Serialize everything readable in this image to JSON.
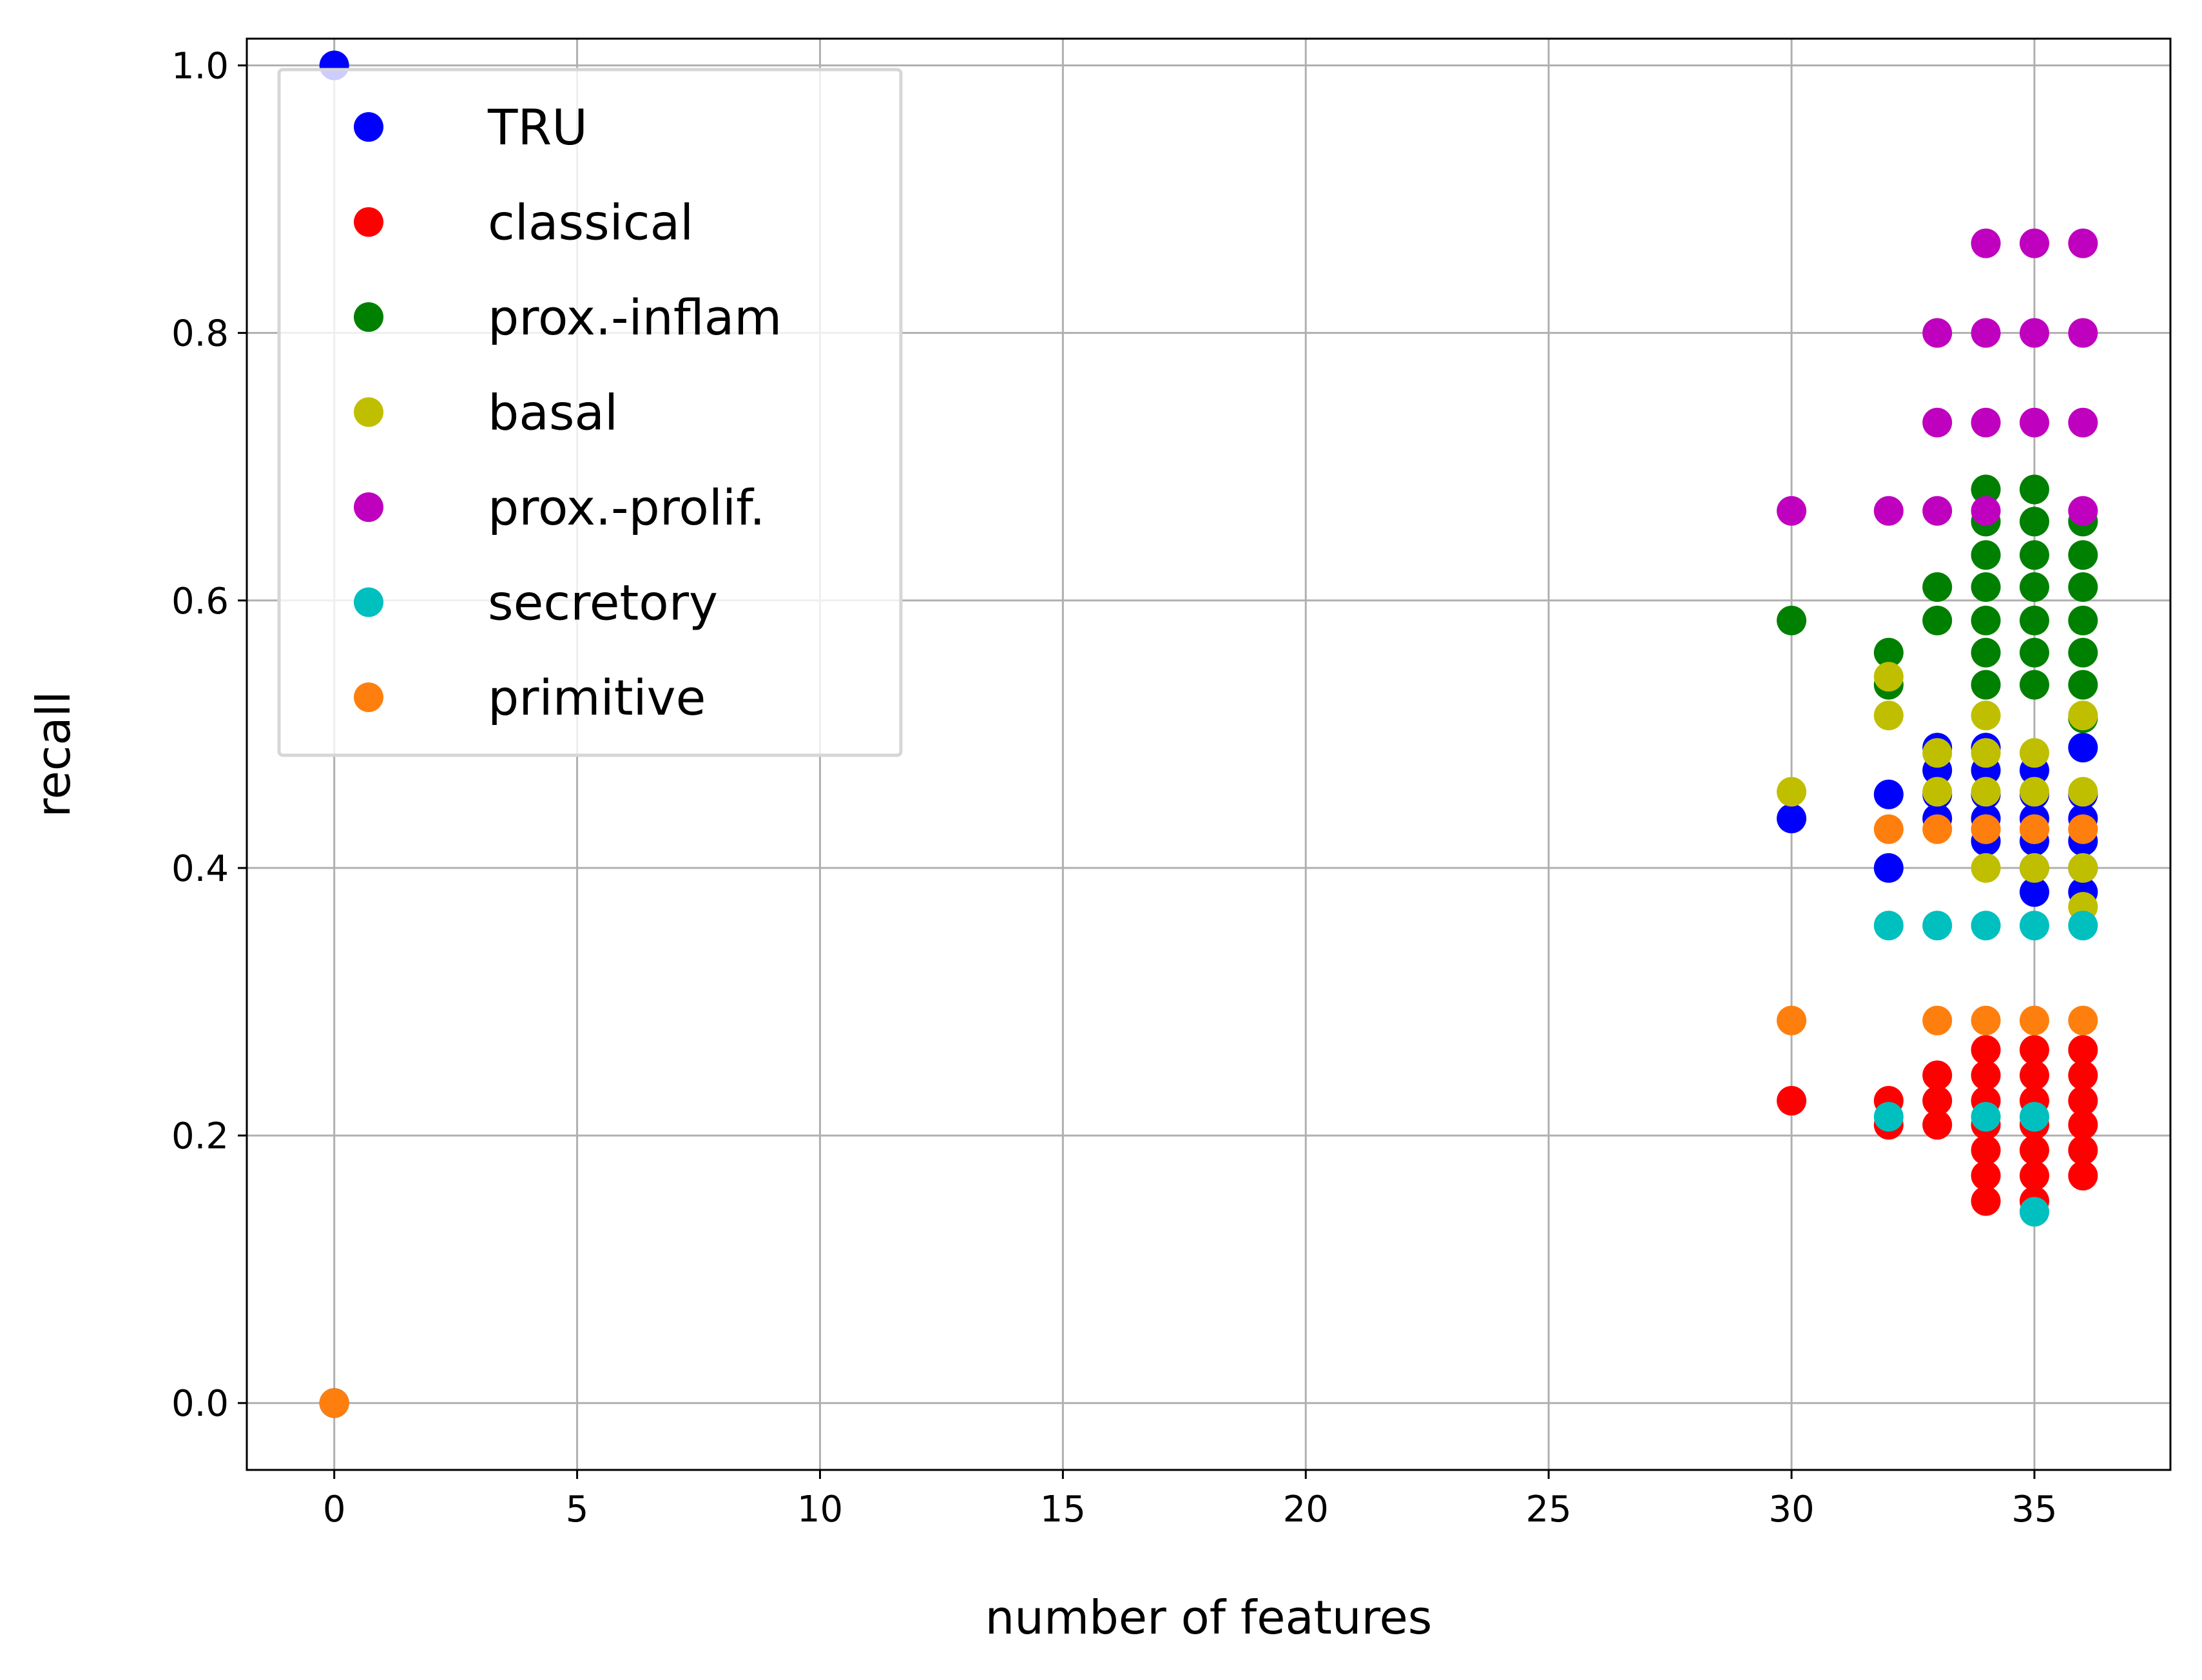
{
  "chart_data": {
    "type": "scatter",
    "title": "",
    "xlabel": "number of features",
    "ylabel": "recall",
    "xlim": [
      -1.8,
      37.8
    ],
    "ylim": [
      -0.05,
      1.02
    ],
    "xticks": [
      "0",
      "5",
      "10",
      "15",
      "20",
      "25",
      "30",
      "35"
    ],
    "yticks": [
      "0.0",
      "0.2",
      "0.4",
      "0.6",
      "0.8",
      "1.0"
    ],
    "grid": true,
    "legend_position": "top-left",
    "series": [
      {
        "name": "TRU",
        "color": "#0000ff",
        "points": [
          [
            0,
            1.0
          ],
          [
            0,
            0.0
          ],
          [
            30,
            0.437
          ],
          [
            32,
            0.455
          ],
          [
            32,
            0.4
          ],
          [
            33,
            0.49
          ],
          [
            33,
            0.473
          ],
          [
            33,
            0.455
          ],
          [
            33,
            0.437
          ],
          [
            34,
            0.49
          ],
          [
            34,
            0.473
          ],
          [
            34,
            0.455
          ],
          [
            34,
            0.437
          ],
          [
            34,
            0.42
          ],
          [
            35,
            0.473
          ],
          [
            35,
            0.455
          ],
          [
            35,
            0.437
          ],
          [
            35,
            0.42
          ],
          [
            35,
            0.4
          ],
          [
            35,
            0.382
          ],
          [
            36,
            0.49
          ],
          [
            36,
            0.455
          ],
          [
            36,
            0.437
          ],
          [
            36,
            0.42
          ],
          [
            36,
            0.4
          ],
          [
            36,
            0.382
          ]
        ]
      },
      {
        "name": "classical",
        "color": "#ff0000",
        "points": [
          [
            0,
            0.0
          ],
          [
            30,
            0.226
          ],
          [
            32,
            0.226
          ],
          [
            32,
            0.208
          ],
          [
            33,
            0.245
          ],
          [
            33,
            0.226
          ],
          [
            33,
            0.208
          ],
          [
            34,
            0.264
          ],
          [
            34,
            0.245
          ],
          [
            34,
            0.226
          ],
          [
            34,
            0.208
          ],
          [
            34,
            0.189
          ],
          [
            34,
            0.17
          ],
          [
            34,
            0.151
          ],
          [
            35,
            0.264
          ],
          [
            35,
            0.245
          ],
          [
            35,
            0.226
          ],
          [
            35,
            0.208
          ],
          [
            35,
            0.189
          ],
          [
            35,
            0.17
          ],
          [
            35,
            0.151
          ],
          [
            36,
            0.264
          ],
          [
            36,
            0.245
          ],
          [
            36,
            0.226
          ],
          [
            36,
            0.208
          ],
          [
            36,
            0.189
          ],
          [
            36,
            0.17
          ]
        ]
      },
      {
        "name": "prox.-inflam",
        "color": "#008000",
        "points": [
          [
            0,
            0.0
          ],
          [
            30,
            0.585
          ],
          [
            32,
            0.561
          ],
          [
            32,
            0.537
          ],
          [
            33,
            0.61
          ],
          [
            33,
            0.585
          ],
          [
            34,
            0.683
          ],
          [
            34,
            0.659
          ],
          [
            34,
            0.634
          ],
          [
            34,
            0.61
          ],
          [
            34,
            0.585
          ],
          [
            34,
            0.561
          ],
          [
            34,
            0.537
          ],
          [
            35,
            0.683
          ],
          [
            35,
            0.659
          ],
          [
            35,
            0.634
          ],
          [
            35,
            0.61
          ],
          [
            35,
            0.585
          ],
          [
            35,
            0.561
          ],
          [
            35,
            0.537
          ],
          [
            36,
            0.659
          ],
          [
            36,
            0.634
          ],
          [
            36,
            0.61
          ],
          [
            36,
            0.585
          ],
          [
            36,
            0.561
          ],
          [
            36,
            0.537
          ],
          [
            36,
            0.512
          ]
        ]
      },
      {
        "name": "basal",
        "color": "#bfbf00",
        "points": [
          [
            0,
            0.0
          ],
          [
            30,
            0.457
          ],
          [
            32,
            0.543
          ],
          [
            32,
            0.514
          ],
          [
            33,
            0.486
          ],
          [
            33,
            0.457
          ],
          [
            34,
            0.514
          ],
          [
            34,
            0.486
          ],
          [
            34,
            0.457
          ],
          [
            34,
            0.429
          ],
          [
            34,
            0.4
          ],
          [
            35,
            0.486
          ],
          [
            35,
            0.457
          ],
          [
            35,
            0.429
          ],
          [
            35,
            0.4
          ],
          [
            36,
            0.514
          ],
          [
            36,
            0.457
          ],
          [
            36,
            0.4
          ],
          [
            36,
            0.371
          ]
        ]
      },
      {
        "name": "prox.-prolif.",
        "color": "#bf00bf",
        "points": [
          [
            0,
            0.0
          ],
          [
            30,
            0.667
          ],
          [
            32,
            0.667
          ],
          [
            33,
            0.8
          ],
          [
            33,
            0.733
          ],
          [
            33,
            0.667
          ],
          [
            34,
            0.867
          ],
          [
            34,
            0.8
          ],
          [
            34,
            0.733
          ],
          [
            34,
            0.667
          ],
          [
            35,
            0.867
          ],
          [
            35,
            0.8
          ],
          [
            35,
            0.733
          ],
          [
            36,
            0.867
          ],
          [
            36,
            0.8
          ],
          [
            36,
            0.733
          ],
          [
            36,
            0.667
          ]
        ]
      },
      {
        "name": "secretory",
        "color": "#00bfbf",
        "points": [
          [
            0,
            0.0
          ],
          [
            32,
            0.357
          ],
          [
            32,
            0.214
          ],
          [
            33,
            0.357
          ],
          [
            34,
            0.357
          ],
          [
            34,
            0.214
          ],
          [
            35,
            0.357
          ],
          [
            35,
            0.214
          ],
          [
            35,
            0.143
          ],
          [
            36,
            0.357
          ]
        ]
      },
      {
        "name": "primitive",
        "color": "#ff7f0e",
        "points": [
          [
            0,
            0.0
          ],
          [
            30,
            0.286
          ],
          [
            32,
            0.429
          ],
          [
            33,
            0.429
          ],
          [
            33,
            0.286
          ],
          [
            34,
            0.429
          ],
          [
            34,
            0.286
          ],
          [
            35,
            0.429
          ],
          [
            35,
            0.286
          ],
          [
            36,
            0.429
          ],
          [
            36,
            0.286
          ]
        ]
      }
    ]
  }
}
